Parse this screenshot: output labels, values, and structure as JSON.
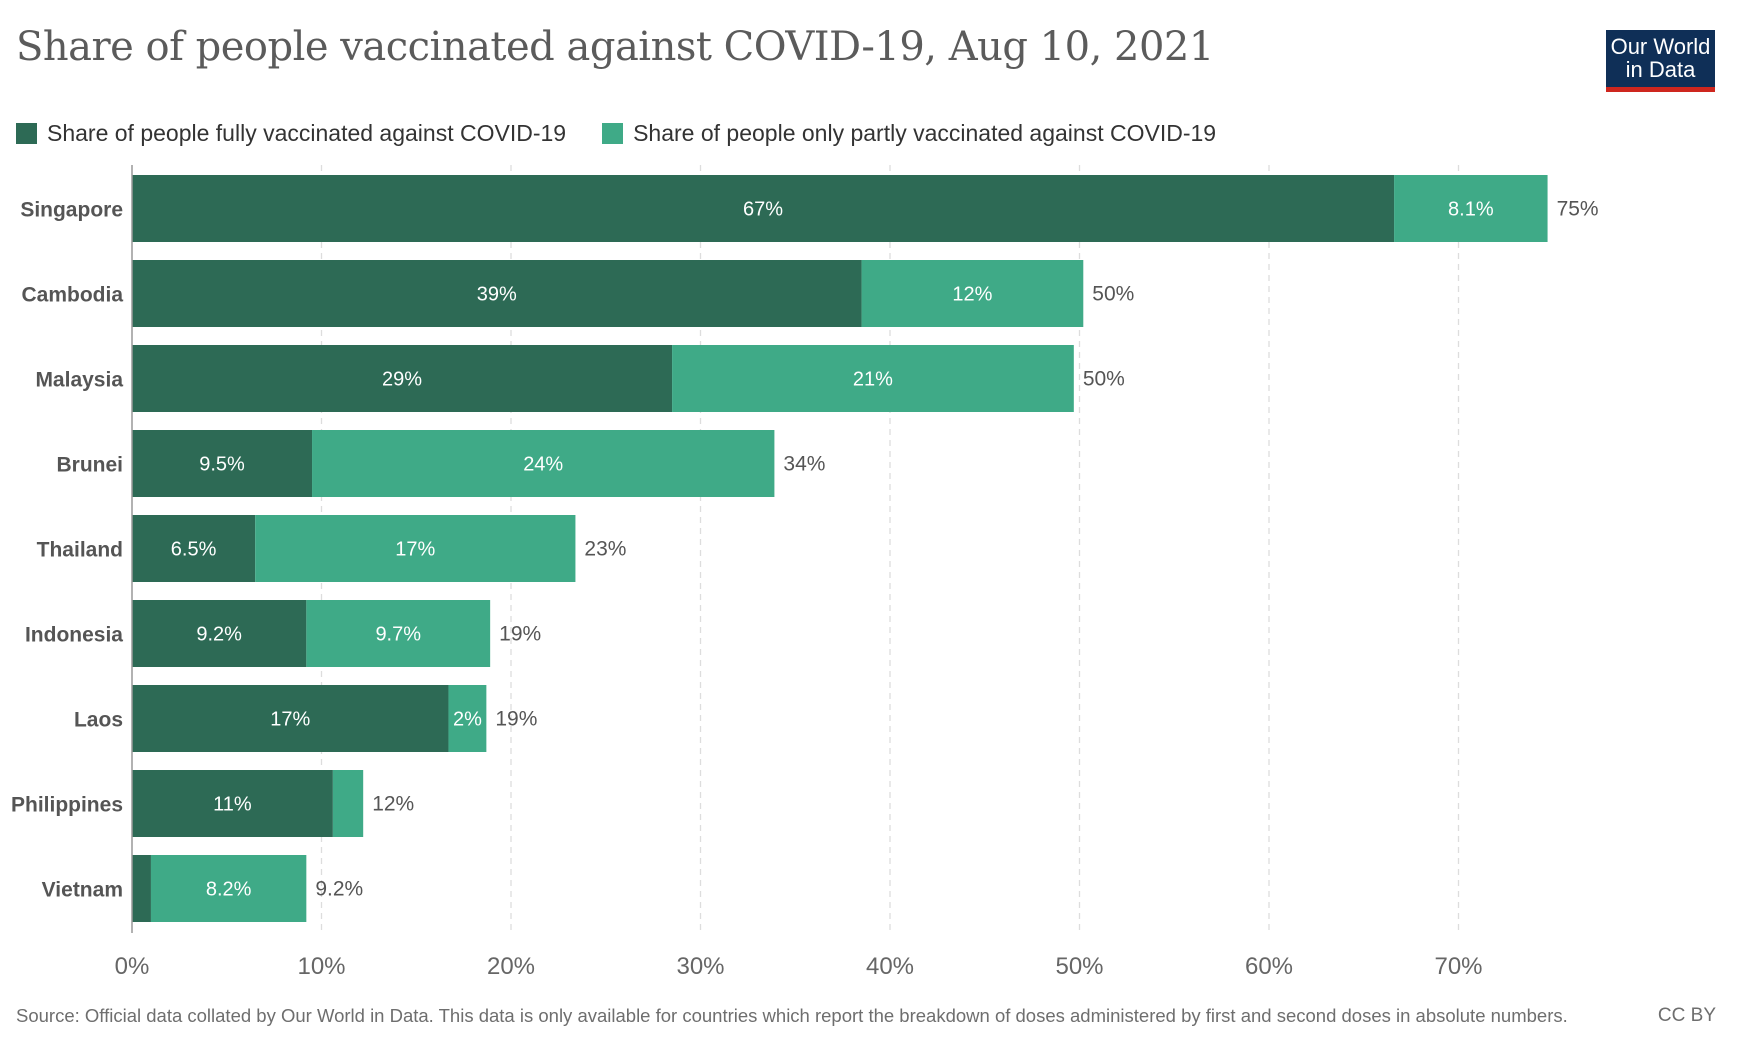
{
  "title": "Share of people vaccinated against COVID-19, Aug 10, 2021",
  "logo": {
    "line1": "Our World",
    "line2": "in Data"
  },
  "legend": [
    {
      "label": "Share of people fully vaccinated against COVID-19",
      "color": "#2d6a55"
    },
    {
      "label": "Share of people only partly vaccinated against COVID-19",
      "color": "#3faa87"
    }
  ],
  "source": "Source: Official data collated by Our World in Data. This data is only available for countries which report the breakdown of doses administered by first and second doses in absolute numbers.",
  "license": "CC BY",
  "chart_data": {
    "type": "bar",
    "orientation": "horizontal",
    "stacked": true,
    "title": "Share of people vaccinated against COVID-19, Aug 10, 2021",
    "categories": [
      "Singapore",
      "Cambodia",
      "Malaysia",
      "Brunei",
      "Thailand",
      "Indonesia",
      "Laos",
      "Philippines",
      "Vietnam"
    ],
    "series": [
      {
        "name": "Share of people fully vaccinated against COVID-19",
        "color": "#2d6a55",
        "values": [
          66.6,
          38.5,
          28.5,
          9.5,
          6.5,
          9.2,
          16.7,
          10.6,
          1.0
        ],
        "labels": [
          "67%",
          "39%",
          "29%",
          "9.5%",
          "6.5%",
          "9.2%",
          "17%",
          "11%",
          ""
        ]
      },
      {
        "name": "Share of people only partly vaccinated against COVID-19",
        "color": "#3faa87",
        "values": [
          8.1,
          11.7,
          21.2,
          24.4,
          16.9,
          9.7,
          2.0,
          1.6,
          8.2
        ],
        "labels": [
          "8.1%",
          "12%",
          "21%",
          "24%",
          "17%",
          "9.7%",
          "2%",
          "",
          "8.2%"
        ]
      }
    ],
    "totals": [
      "75%",
      "50%",
      "50%",
      "34%",
      "23%",
      "19%",
      "19%",
      "12%",
      "9.2%"
    ],
    "xlim": [
      0,
      80
    ],
    "xticks": [
      0,
      10,
      20,
      30,
      40,
      50,
      60,
      70
    ],
    "xtick_labels": [
      "0%",
      "10%",
      "20%",
      "30%",
      "40%",
      "50%",
      "60%",
      "70%"
    ],
    "grid": "vertical dashed",
    "legend_position": "top-left"
  }
}
